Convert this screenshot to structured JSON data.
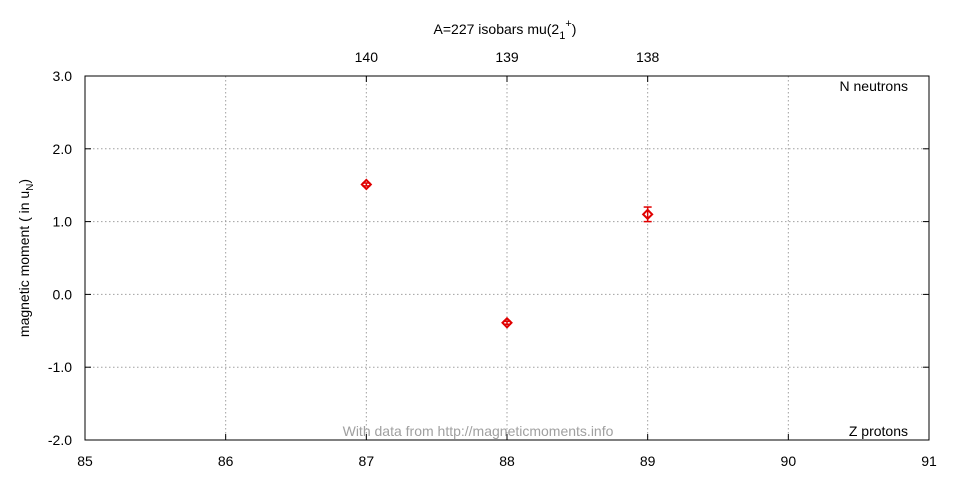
{
  "chart_data": {
    "type": "scatter",
    "title": "A=227 isobars mu(2",
    "title_sub": "1",
    "title_sup": "+",
    "title_end": ")",
    "xlabel": "Z protons",
    "ylabel_main": "magnetic moment ( in u",
    "ylabel_sub": "N",
    "ylabel_end": ")",
    "x2label": "N neutrons",
    "watermark": "With data from http://magneticmoments.info",
    "xlim": [
      85,
      91
    ],
    "ylim": [
      -2.0,
      3.0
    ],
    "x_ticks": [
      85,
      86,
      87,
      88,
      89,
      90,
      91
    ],
    "x_tick_labels": [
      "85",
      "86",
      "87",
      "88",
      "89",
      "90",
      "91"
    ],
    "y_ticks": [
      -2.0,
      -1.0,
      0.0,
      1.0,
      2.0,
      3.0
    ],
    "y_tick_labels": [
      "-2.0",
      "-1.0",
      "0.0",
      "1.0",
      "2.0",
      "3.0"
    ],
    "x2_ticks": [
      87,
      88,
      89
    ],
    "x2_tick_labels": [
      "140",
      "139",
      "138"
    ],
    "grid": true,
    "marker": "diamond",
    "marker_color": "#e00000",
    "series": [
      {
        "x": [
          87,
          88,
          89
        ],
        "y": [
          1.51,
          -0.39,
          1.1
        ],
        "yerr": [
          0.02,
          0.02,
          0.1
        ]
      }
    ]
  }
}
